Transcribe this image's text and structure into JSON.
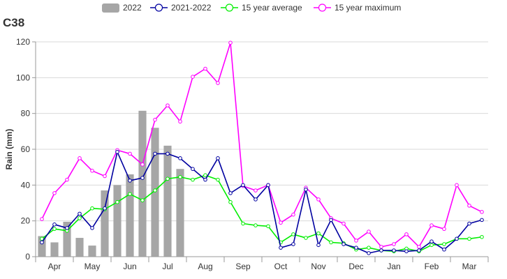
{
  "chart_data": {
    "type": "bar+line",
    "title": "C38",
    "ylabel": "Rain (mm)",
    "xlabel": "",
    "ylim": [
      0,
      120
    ],
    "yticks": [
      0,
      20,
      40,
      60,
      80,
      100,
      120
    ],
    "grid": "horizontal",
    "legend_position": "top",
    "month_labels": [
      "Apr",
      "May",
      "Jun",
      "Jul",
      "Aug",
      "Sep",
      "Oct",
      "Nov",
      "Dec",
      "Jan",
      "Feb",
      "Mar"
    ],
    "period_count": 36,
    "bars": {
      "name": "2022",
      "color": "#a6a6a6",
      "values": [
        11.5,
        8,
        19.5,
        10.5,
        6.2,
        37,
        40,
        46,
        81.5,
        72,
        62,
        49
      ]
    },
    "series": [
      {
        "name": "2021-2022",
        "color": "#0000a0",
        "values": [
          8,
          18,
          16,
          24,
          16,
          27,
          58.5,
          42.5,
          44,
          57.5,
          57.5,
          55,
          49,
          43,
          55,
          35.5,
          40,
          32,
          40,
          5,
          7,
          37.5,
          6.5,
          20.5,
          7,
          5,
          2,
          3.5,
          3.5,
          3,
          3.5,
          8.5,
          4,
          10,
          18.5,
          20.5
        ]
      },
      {
        "name": "15 year average",
        "color": "#00ee00",
        "values": [
          10,
          15.5,
          14.5,
          21.5,
          27,
          26.5,
          30.5,
          35,
          31.5,
          37,
          43.5,
          44.5,
          43,
          45.5,
          43,
          30.5,
          18.5,
          17.5,
          17,
          8,
          12.5,
          10.5,
          13,
          8,
          7.5,
          4,
          5,
          3.5,
          3,
          4.5,
          3,
          6.5,
          7,
          10,
          10,
          11
        ]
      },
      {
        "name": "15 year maximum",
        "color": "#ff00ff",
        "values": [
          21,
          35.5,
          43,
          55,
          48,
          45,
          59.5,
          57.5,
          51.5,
          76.5,
          84.5,
          75.5,
          100.5,
          105,
          97,
          119.5,
          39.5,
          37,
          40,
          19,
          23.5,
          38.5,
          32,
          21.5,
          18.5,
          9,
          14,
          5.5,
          7,
          12.5,
          5.5,
          17.5,
          15.5,
          40,
          28.5,
          25
        ]
      }
    ]
  }
}
